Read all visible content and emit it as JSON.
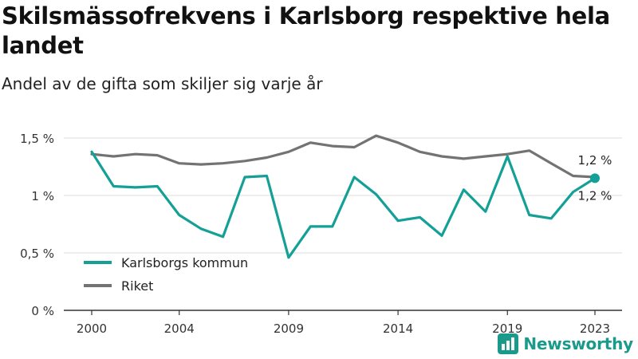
{
  "title": "Skilsmässofrekvens i Karlsborg respektive hela landet",
  "subtitle": "Andel av de gifta som skiljer sig varje år",
  "brand": {
    "name": "Newsworthy",
    "icon": "newsworthy-logo-icon",
    "color": "#1a9a8a"
  },
  "chart_data": {
    "type": "line",
    "x": [
      2000,
      2001,
      2002,
      2003,
      2004,
      2005,
      2006,
      2007,
      2008,
      2009,
      2010,
      2011,
      2012,
      2013,
      2014,
      2015,
      2016,
      2017,
      2018,
      2019,
      2020,
      2021,
      2022,
      2023
    ],
    "x_ticks": [
      "2000",
      "2004",
      "2009",
      "2014",
      "2019",
      "2023"
    ],
    "y_ticks": [
      "0 %",
      "0,5 %",
      "1 %",
      "1,5 %"
    ],
    "ylim": [
      0,
      1.5
    ],
    "xlim": [
      2000,
      2023
    ],
    "grid": true,
    "legend_position": "bottom-left",
    "series": [
      {
        "name": "Karlsborgs kommun",
        "color": "#14a096",
        "end_label": "1,2 %",
        "values": [
          1.38,
          1.08,
          1.07,
          1.08,
          0.83,
          0.71,
          0.64,
          1.16,
          1.17,
          0.46,
          0.73,
          0.73,
          1.16,
          1.01,
          0.78,
          0.81,
          0.65,
          1.05,
          0.86,
          1.34,
          0.83,
          0.8,
          1.03,
          1.15
        ]
      },
      {
        "name": "Riket",
        "color": "#737373",
        "end_label": "1,2 %",
        "values": [
          1.36,
          1.34,
          1.36,
          1.35,
          1.28,
          1.27,
          1.28,
          1.3,
          1.33,
          1.38,
          1.46,
          1.43,
          1.42,
          1.52,
          1.46,
          1.38,
          1.34,
          1.32,
          1.34,
          1.36,
          1.39,
          1.28,
          1.17,
          1.16
        ]
      }
    ]
  }
}
